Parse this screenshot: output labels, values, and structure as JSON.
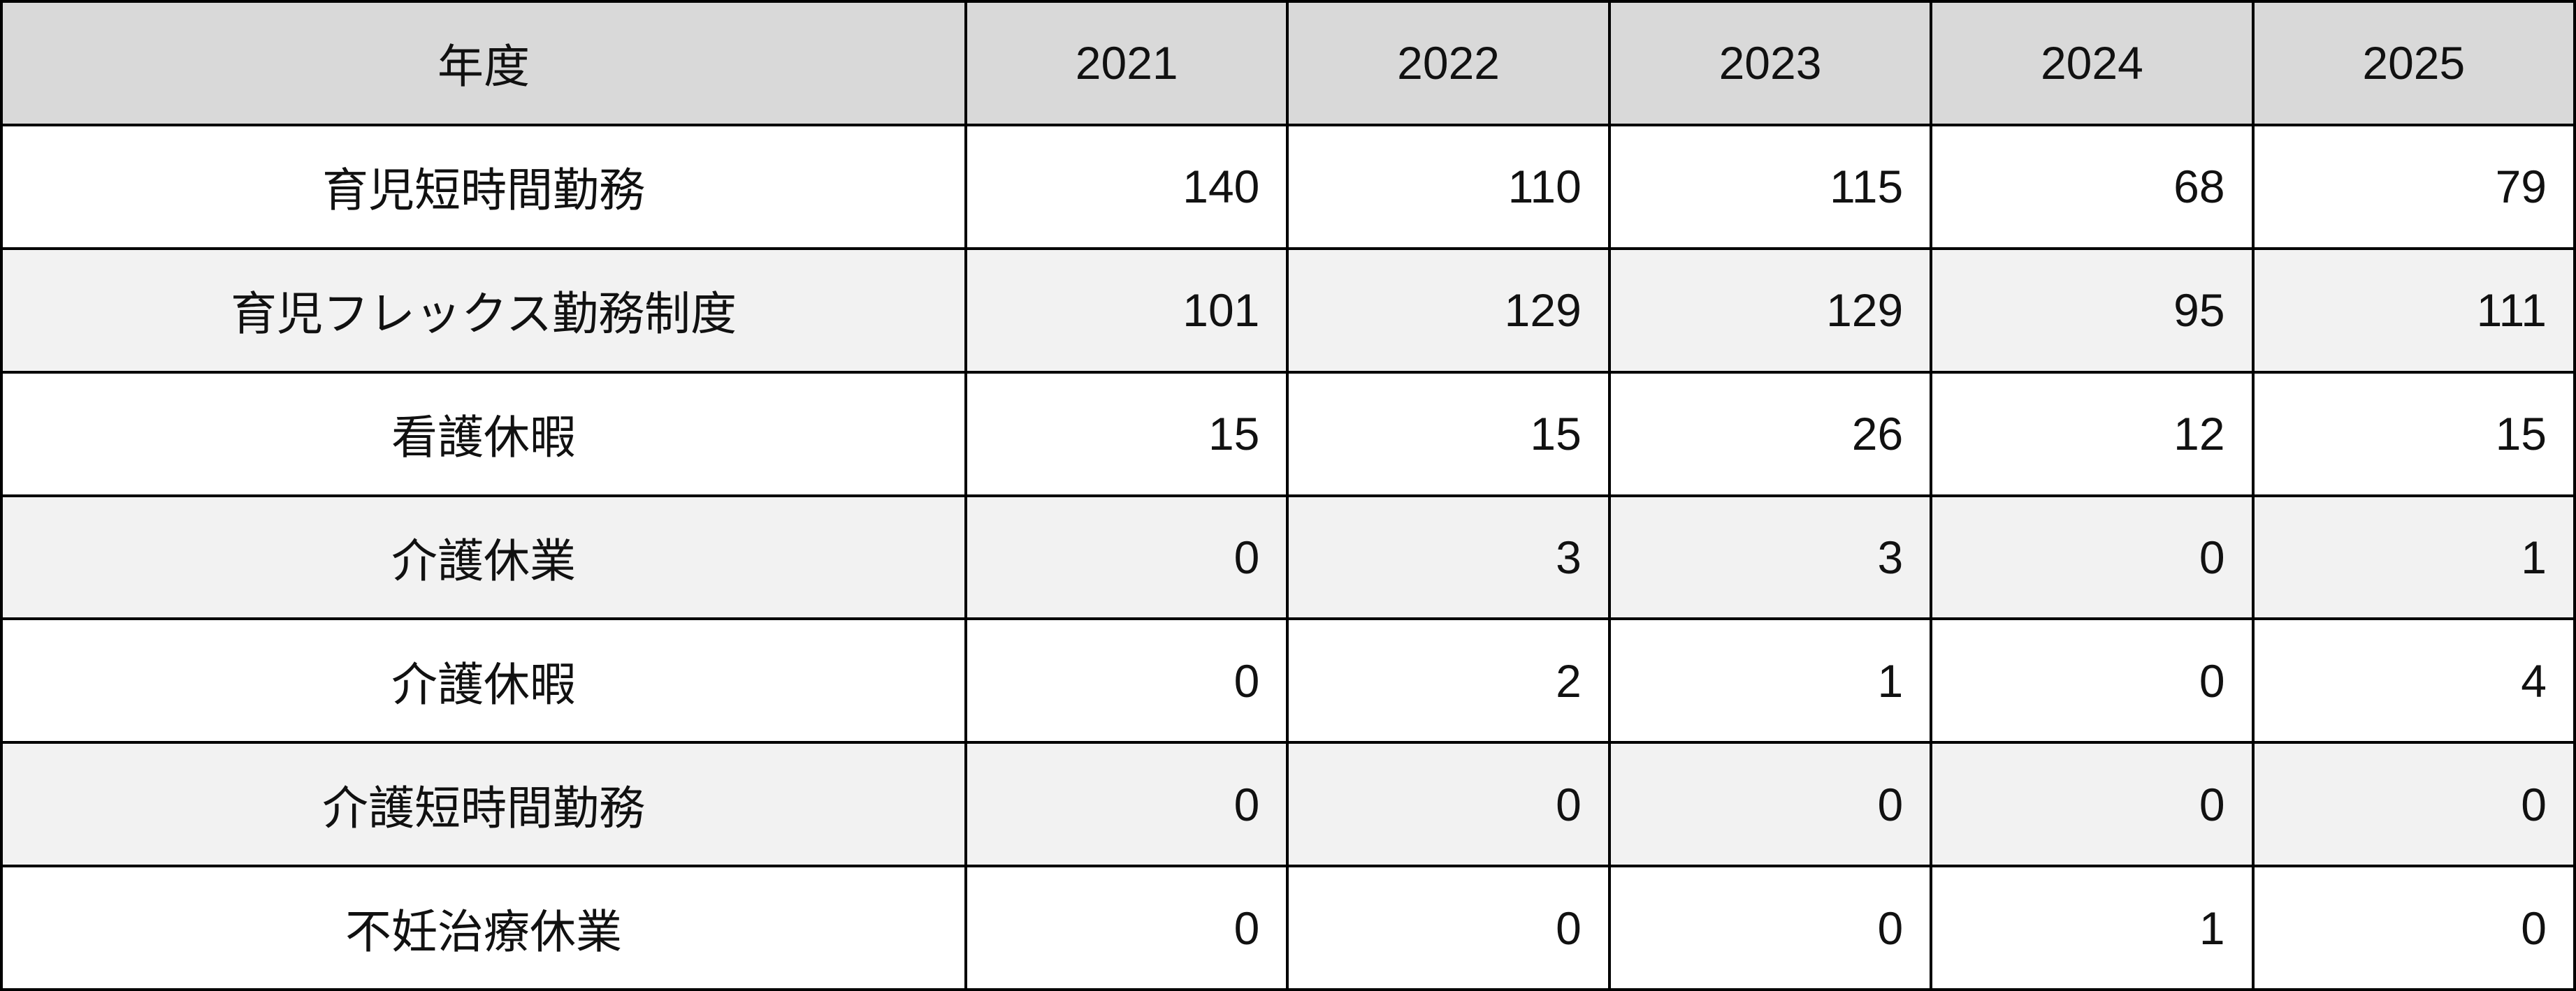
{
  "table": {
    "header": [
      "年度",
      "2021",
      "2022",
      "2023",
      "2024",
      "2025"
    ],
    "rows": [
      [
        "育児短時間勤務",
        140,
        110,
        115,
        68,
        79
      ],
      [
        "育児フレックス勤務制度",
        101,
        129,
        129,
        95,
        111
      ],
      [
        "看護休暇",
        15,
        15,
        26,
        12,
        15
      ],
      [
        "介護休業",
        0,
        3,
        3,
        0,
        1
      ],
      [
        "介護休暇",
        0,
        2,
        1,
        0,
        4
      ],
      [
        "介護短時間勤務",
        0,
        0,
        0,
        0,
        0
      ],
      [
        "不妊治療休業",
        0,
        0,
        0,
        1,
        0
      ]
    ]
  }
}
